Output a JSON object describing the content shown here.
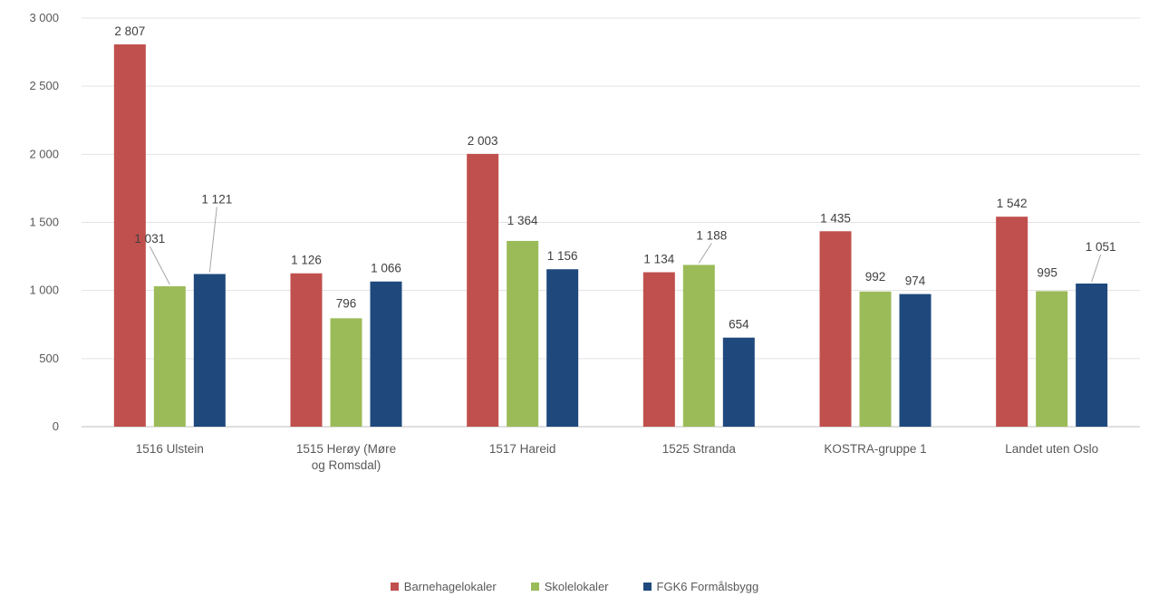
{
  "chart_data": {
    "type": "bar",
    "categories": [
      [
        "1516 Ulstein"
      ],
      [
        "1515 Herøy (Møre",
        "og Romsdal)"
      ],
      [
        "1517 Hareid"
      ],
      [
        "1525 Stranda"
      ],
      [
        "KOSTRA-gruppe 1"
      ],
      [
        "Landet uten Oslo"
      ]
    ],
    "series": [
      {
        "name": "Barnehagelokaler",
        "color": "#c0504d",
        "values": [
          2807,
          1126,
          2003,
          1134,
          1435,
          1542
        ],
        "labels": [
          "2 807",
          "1 126",
          "2 003",
          "1 134",
          "1 435",
          "1 542"
        ]
      },
      {
        "name": "Skolelokaler",
        "color": "#9bbb59",
        "values": [
          1031,
          796,
          1364,
          1188,
          992,
          995
        ],
        "labels": [
          "1 031",
          "796",
          "1 364",
          "1 188",
          "992",
          "995"
        ]
      },
      {
        "name": "FGK6 Formålsbygg",
        "color": "#1f497d",
        "values": [
          1121,
          1066,
          1156,
          654,
          974,
          1051
        ],
        "labels": [
          "1 121",
          "1 066",
          "1 156",
          "654",
          "974",
          "1 051"
        ]
      }
    ],
    "ylim": [
      0,
      3000
    ],
    "yticks": [
      0,
      500,
      1000,
      1500,
      2000,
      2500,
      3000
    ],
    "ytick_labels": [
      "0",
      "500",
      "1 000",
      "1 500",
      "2 000",
      "2 500",
      "3 000"
    ],
    "grid": true,
    "legend_position": "bottom",
    "title": "",
    "xlabel": "",
    "ylabel": ""
  },
  "legend": {
    "items": [
      {
        "label": "Barnehagelokaler",
        "color": "#c0504d"
      },
      {
        "label": "Skolelokaler",
        "color": "#9bbb59"
      },
      {
        "label": "FGK6 Formålsbygg",
        "color": "#1f497d"
      }
    ]
  }
}
